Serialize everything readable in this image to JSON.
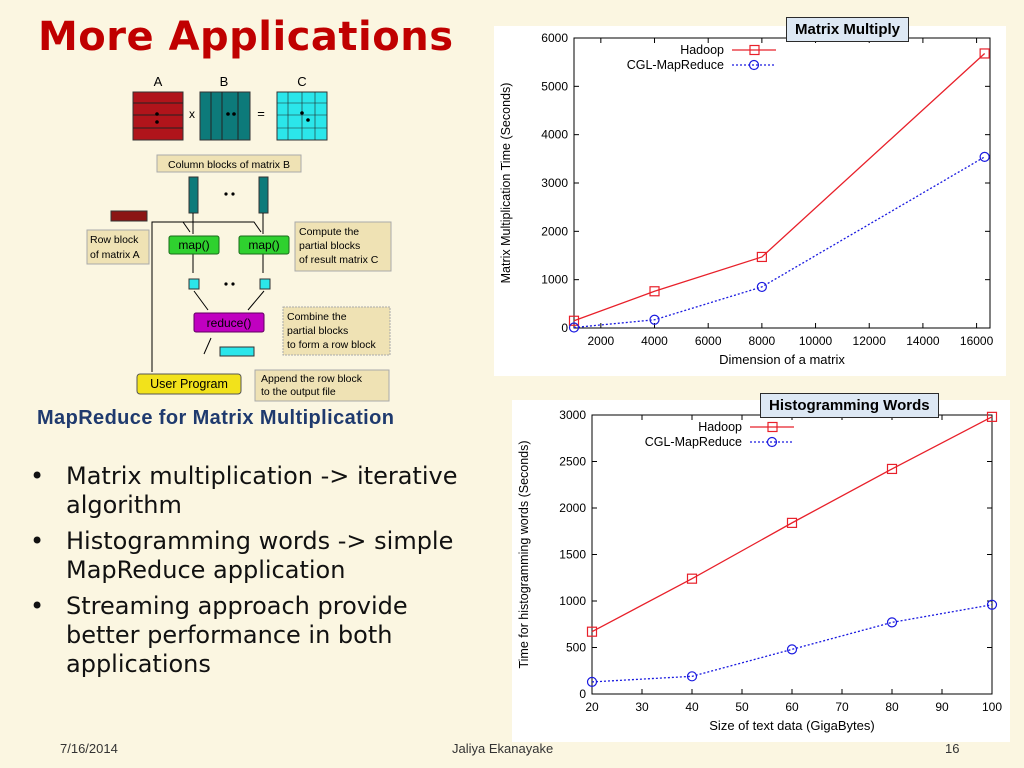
{
  "slide": {
    "title": "More Applications",
    "caption": "MapReduce for Matrix Multiplication",
    "bullets": [
      "Matrix multiplication -> iterative algorithm",
      "Histogramming words -> simple MapReduce application",
      "Streaming approach provide better performance in both applications"
    ],
    "footer": {
      "date": "7/16/2014",
      "author": "Jaliya Ekanayake",
      "page": "16"
    }
  },
  "diagram": {
    "matrix_labels": [
      "A",
      "B",
      "C"
    ],
    "times": "x",
    "equals": "=",
    "column_blocks": "Column blocks of matrix B",
    "row_block": [
      "Row block",
      "of matrix A"
    ],
    "map1": "map()",
    "map2": "map()",
    "compute": [
      "Compute the",
      "partial blocks",
      "of result matrix C"
    ],
    "reduce": "reduce()",
    "combine": [
      "Combine the",
      "partial blocks",
      "to form a row block"
    ],
    "user_program": "User Program",
    "append": [
      "Append the row block",
      "to the output file"
    ],
    "colors": {
      "A": "#b0141b",
      "B": "#0d7a7a",
      "C": "#2be6ea",
      "map": "#2fd12f",
      "reduce": "#c000c0",
      "user": "#f2e21b",
      "note": "#efe2b4"
    }
  },
  "chart_data": [
    {
      "type": "line",
      "badge": "Matrix Multiply",
      "xlabel": "Dimension of a matrix",
      "ylabel": "Matrix Multiplication Time (Seconds)",
      "xlim": [
        1000,
        16500
      ],
      "ylim": [
        0,
        6000
      ],
      "xticks": [
        2000,
        4000,
        6000,
        8000,
        10000,
        12000,
        14000,
        16000
      ],
      "yticks": [
        0,
        1000,
        2000,
        3000,
        4000,
        5000,
        6000
      ],
      "legend": "top-left",
      "series": [
        {
          "name": "Hadoop",
          "color": "#e8202a",
          "style": "solid",
          "marker": "square",
          "x": [
            1000,
            4000,
            8000,
            16300
          ],
          "values": [
            150,
            760,
            1470,
            5680
          ]
        },
        {
          "name": "CGL-MapReduce",
          "color": "#1a1ae0",
          "style": "dotted",
          "marker": "circle",
          "x": [
            1000,
            4000,
            8000,
            16300
          ],
          "values": [
            10,
            170,
            850,
            3540
          ]
        }
      ]
    },
    {
      "type": "line",
      "badge": "Histogramming Words",
      "xlabel": "Size of text data (GigaBytes)",
      "ylabel": "Time for histogramming words (Seconds)",
      "xlim": [
        20,
        100
      ],
      "ylim": [
        0,
        3000
      ],
      "xticks": [
        20,
        30,
        40,
        50,
        60,
        70,
        80,
        90,
        100
      ],
      "yticks": [
        0,
        500,
        1000,
        1500,
        2000,
        2500,
        3000
      ],
      "legend": "top-left",
      "series": [
        {
          "name": "Hadoop",
          "color": "#e8202a",
          "style": "solid",
          "marker": "square",
          "x": [
            20,
            40,
            60,
            80,
            100
          ],
          "values": [
            670,
            1240,
            1840,
            2420,
            2980
          ]
        },
        {
          "name": "CGL-MapReduce",
          "color": "#1a1ae0",
          "style": "dotted",
          "marker": "circle",
          "x": [
            20,
            40,
            60,
            80,
            100
          ],
          "values": [
            130,
            190,
            480,
            770,
            960
          ]
        }
      ]
    }
  ]
}
